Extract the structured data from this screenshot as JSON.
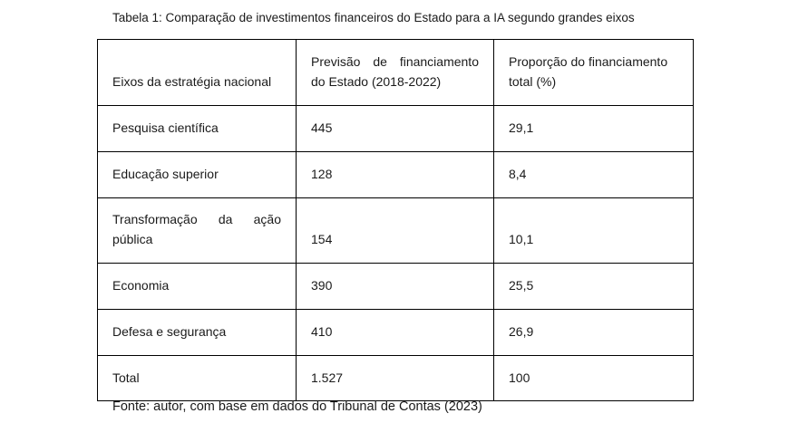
{
  "caption": "Tabela 1: Comparação de investimentos financeiros do Estado para a IA segundo grandes eixos",
  "table": {
    "headers": {
      "axis": "Eixos da estratégia nacional",
      "forecast_line1": "Previsão de financiamento",
      "forecast_line2": "do Estado (2018-2022)",
      "share_line1": "Proporção do financiamento",
      "share_line2": "total (%)"
    },
    "rows": [
      {
        "axis": "Pesquisa científica",
        "forecast": "445",
        "share": "29,1"
      },
      {
        "axis": "Educação superior",
        "forecast": "128",
        "share": "8,4"
      },
      {
        "axis_line1": "Transformação da ação",
        "axis_line2": "pública",
        "forecast": "154",
        "share": "10,1"
      },
      {
        "axis": "Economia",
        "forecast": "390",
        "share": "25,5"
      },
      {
        "axis": "Defesa e segurança",
        "forecast": "410",
        "share": "26,9"
      },
      {
        "axis": "Total",
        "forecast": "1.527",
        "share": "100"
      }
    ]
  },
  "source": "Fonte: autor, com base em dados do Tribunal de Contas (2023)"
}
